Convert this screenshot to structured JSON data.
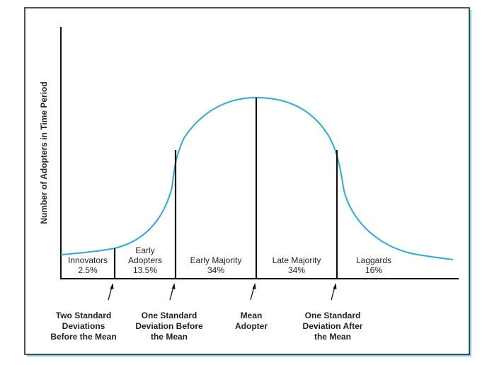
{
  "chart_data": {
    "type": "area",
    "title": "",
    "xlabel": "",
    "ylabel": "Number of Adopters in Time Period",
    "curve_color": "#29aae1",
    "segments": [
      {
        "lines": [
          "Innovators"
        ],
        "value": "2.5%"
      },
      {
        "lines": [
          "Early",
          "Adopters"
        ],
        "value": "13.5%"
      },
      {
        "lines": [
          "Early Majority"
        ],
        "value": "34%"
      },
      {
        "lines": [
          "Late Majority"
        ],
        "value": "34%"
      },
      {
        "lines": [
          "Laggards"
        ],
        "value": "16%"
      }
    ],
    "markers": [
      {
        "lines": [
          "Two Standard",
          "Deviations",
          "Before the Mean"
        ]
      },
      {
        "lines": [
          "One Standard",
          "Deviation Before",
          "the Mean"
        ]
      },
      {
        "lines": [
          "Mean",
          "Adopter"
        ]
      },
      {
        "lines": [
          "One Standard",
          "Deviation After",
          "the Mean"
        ]
      }
    ]
  }
}
